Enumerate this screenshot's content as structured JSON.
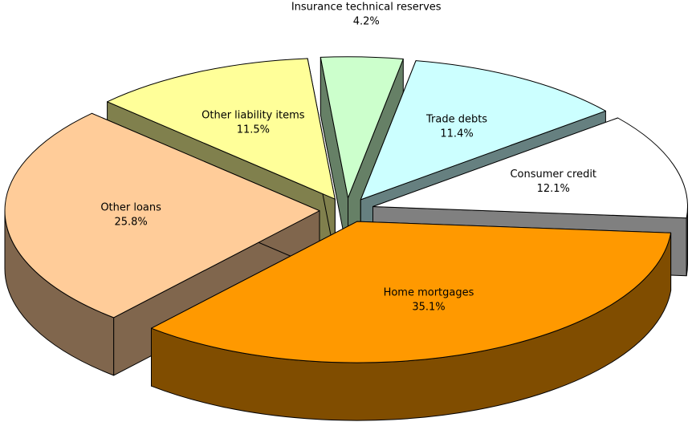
{
  "chart_data": {
    "type": "pie3d",
    "categories": [
      "Insurance technical reserves",
      "Trade debts",
      "Consumer credit",
      "Home mortgages",
      "Other loans",
      "Other liability items"
    ],
    "values": [
      4.2,
      11.4,
      12.1,
      35.1,
      25.8,
      11.5
    ],
    "value_labels": [
      "4.2%",
      "11.4%",
      "12.1%",
      "35.1%",
      "25.8%",
      "11.5%"
    ],
    "colors": [
      "#ccffcc",
      "#ccffff",
      "#ffffff",
      "#ff9900",
      "#ffcc99",
      "#ffff99"
    ]
  }
}
